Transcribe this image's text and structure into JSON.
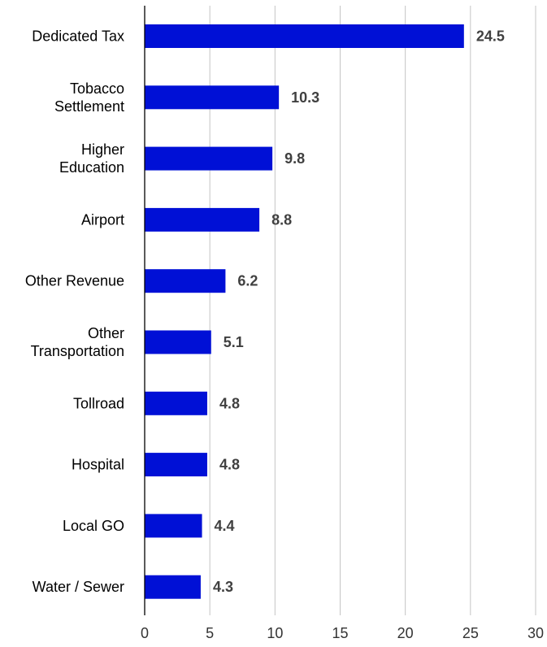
{
  "chart_data": {
    "type": "bar",
    "orientation": "horizontal",
    "title": "",
    "xlabel": "",
    "ylabel": "",
    "xlim": [
      0,
      30
    ],
    "x_ticks": [
      0,
      5,
      10,
      15,
      20,
      25,
      30
    ],
    "grid": "vertical",
    "legend": "none",
    "bar_color": "#0010d6",
    "categories": [
      "Dedicated Tax",
      "Tobacco Settlement",
      "Higher Education",
      "Airport",
      "Other Revenue",
      "Other Transportation",
      "Tollroad",
      "Hospital",
      "Local GO",
      "Water / Sewer"
    ],
    "category_lines": [
      [
        "Dedicated Tax"
      ],
      [
        "Tobacco",
        "Settlement"
      ],
      [
        "Higher",
        "Education"
      ],
      [
        "Airport"
      ],
      [
        "Other Revenue"
      ],
      [
        "Other",
        "Transportation"
      ],
      [
        "Tollroad"
      ],
      [
        "Hospital"
      ],
      [
        "Local GO"
      ],
      [
        "Water / Sewer"
      ]
    ],
    "values": [
      24.5,
      10.3,
      9.8,
      8.8,
      6.2,
      5.1,
      4.8,
      4.8,
      4.4,
      4.3
    ],
    "data_labels": [
      "24.5",
      "10.3",
      "9.8",
      "8.8",
      "6.2",
      "5.1",
      "4.8",
      "4.8",
      "4.4",
      "4.3"
    ]
  }
}
